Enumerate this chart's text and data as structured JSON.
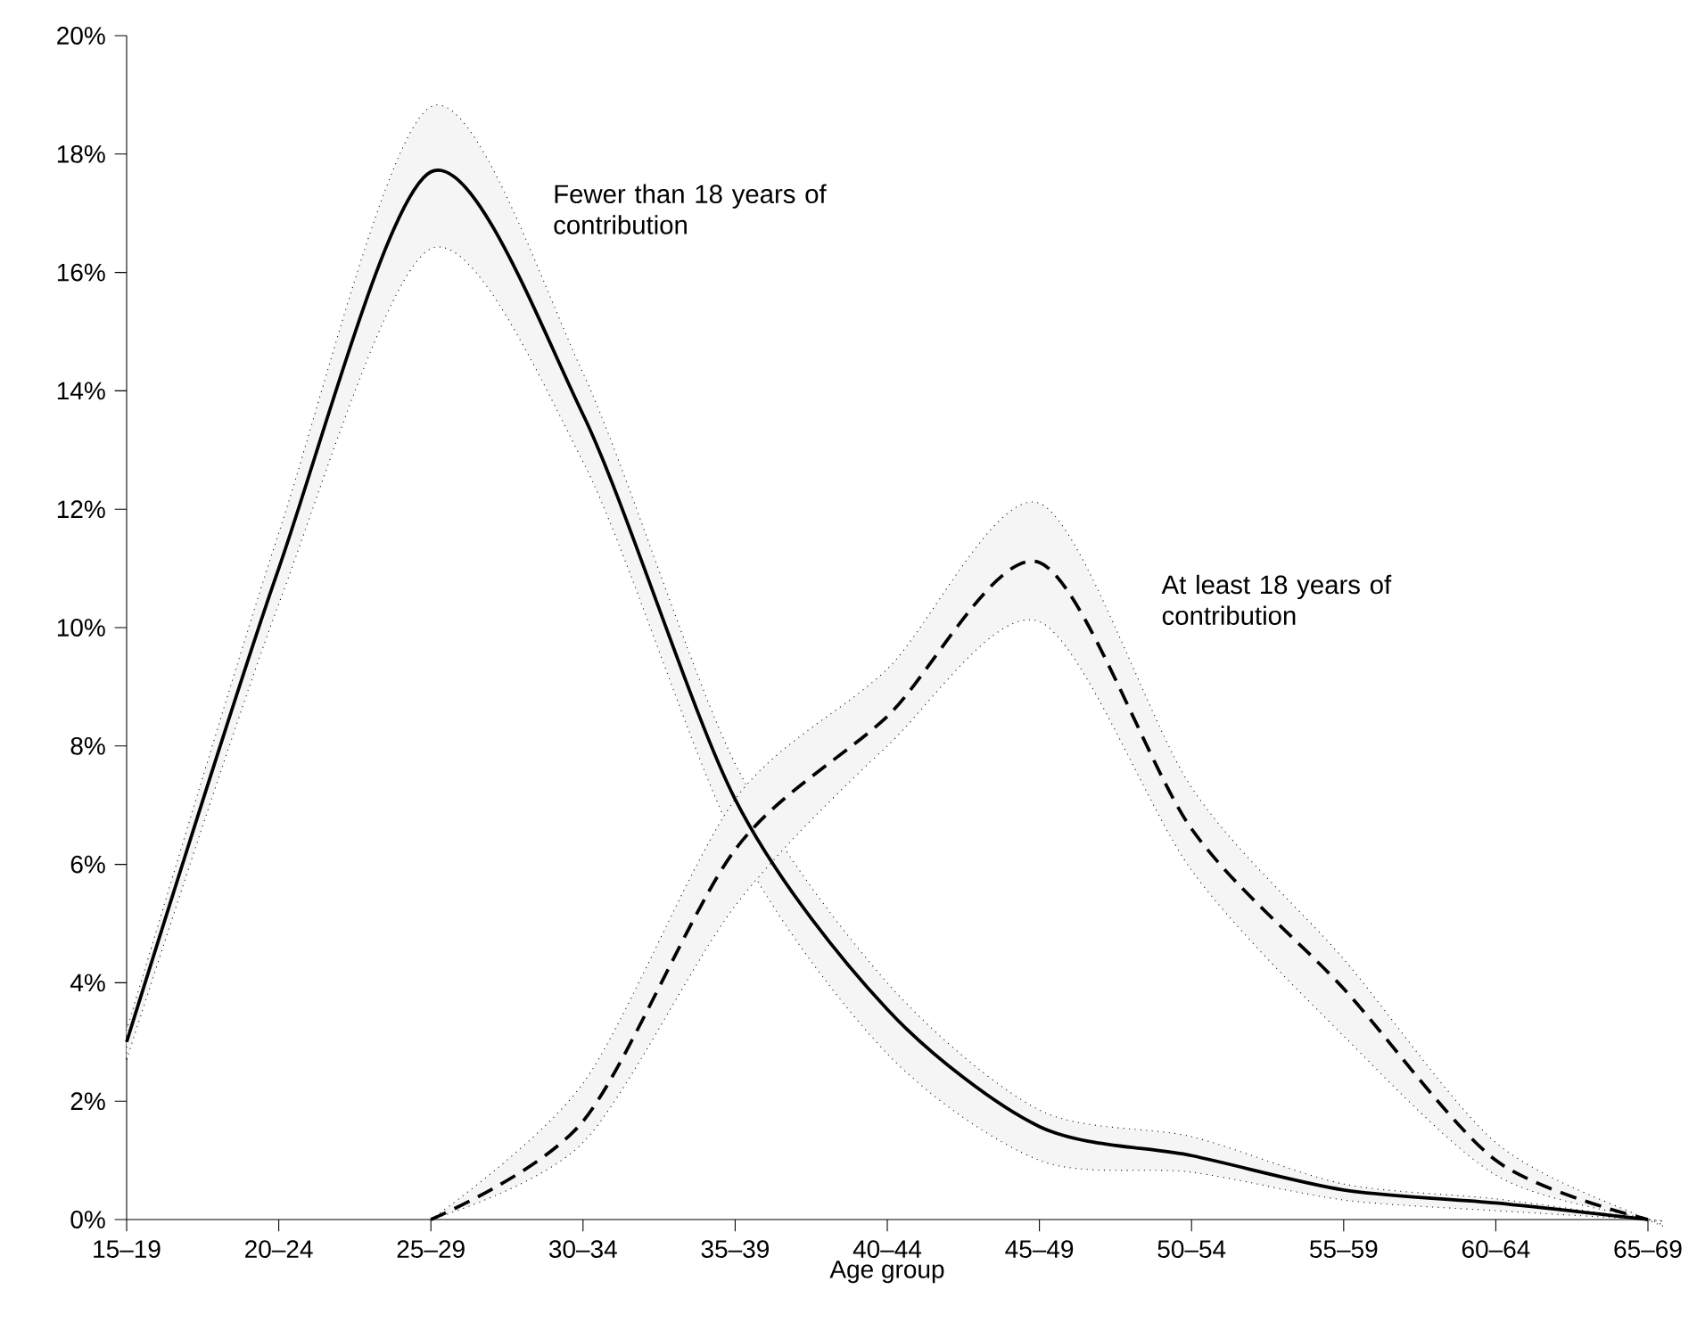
{
  "chart_data": {
    "type": "line",
    "xlabel": "Age group",
    "categories": [
      "15–19",
      "20–24",
      "25–29",
      "30–34",
      "35–39",
      "40–44",
      "45–49",
      "50–54",
      "55–59",
      "60–64",
      "65–69"
    ],
    "ylim": [
      0,
      20
    ],
    "yticks": [
      {
        "value": 0,
        "label": "0%"
      },
      {
        "value": 2,
        "label": "2%"
      },
      {
        "value": 4,
        "label": "4%"
      },
      {
        "value": 6,
        "label": "6%"
      },
      {
        "value": 8,
        "label": "8%"
      },
      {
        "value": 10,
        "label": "10%"
      },
      {
        "value": 12,
        "label": "12%"
      },
      {
        "value": 14,
        "label": "14%"
      },
      {
        "value": 16,
        "label": "16%"
      },
      {
        "value": 18,
        "label": "18%"
      },
      {
        "value": 20,
        "label": "20%"
      }
    ],
    "series": [
      {
        "name": "Fewer than 18 years of contribution",
        "color": "#000000",
        "line_style": "solid",
        "values": [
          3.0,
          11.0,
          17.7,
          13.6,
          7.1,
          3.55,
          1.57,
          1.08,
          0.5,
          0.28,
          0
        ],
        "lower": [
          2.7,
          10.4,
          16.4,
          12.8,
          6.4,
          2.8,
          1.0,
          0.8,
          0.33,
          0.15,
          0
        ],
        "upper": [
          3.2,
          11.6,
          18.8,
          14.3,
          7.7,
          4.0,
          1.85,
          1.4,
          0.6,
          0.35,
          0
        ]
      },
      {
        "name": "At least 18 years of contribution",
        "color": "#000000",
        "line_style": "dashed",
        "values": [
          null,
          null,
          0,
          1.66,
          6.25,
          8.5,
          11.1,
          6.6,
          3.9,
          1.0,
          0
        ],
        "lower": [
          null,
          null,
          0,
          1.3,
          5.3,
          8.0,
          10.1,
          5.9,
          3.1,
          0.75,
          0
        ],
        "upper": [
          null,
          null,
          0,
          2.3,
          7.1,
          9.3,
          12.1,
          7.3,
          4.4,
          1.3,
          0
        ]
      }
    ]
  }
}
